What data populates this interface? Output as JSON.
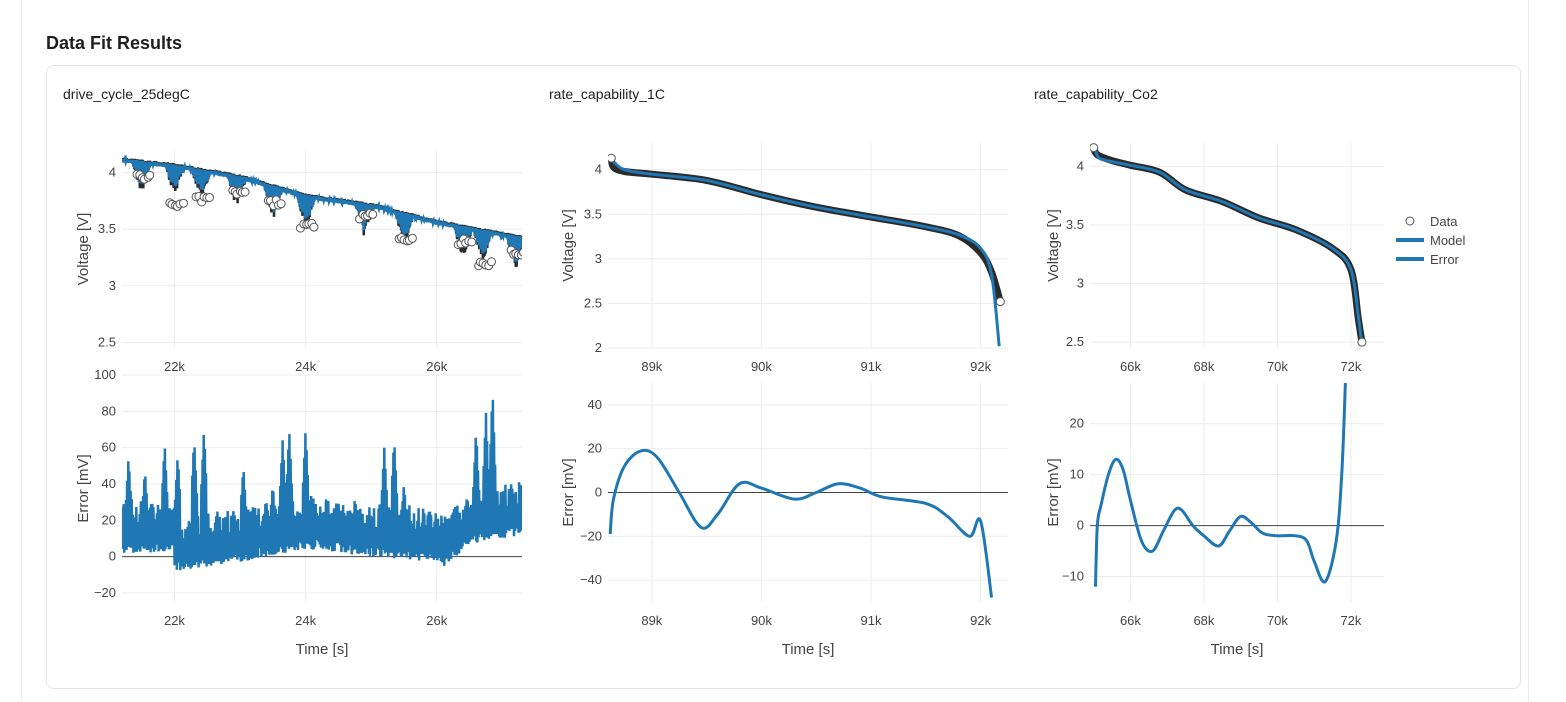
{
  "section": {
    "title": "Data Fit Results"
  },
  "colors": {
    "data": "#2b2b2b",
    "model": "#1f77b4",
    "error": "#1f77b4",
    "grid": "#ececec",
    "zero": "#444444"
  },
  "legend": {
    "items": [
      {
        "label": "Data",
        "symbol": "circle-open"
      },
      {
        "label": "Model",
        "symbol": "line"
      },
      {
        "label": "Error",
        "symbol": "line"
      }
    ]
  },
  "chart_data": [
    {
      "type": "line",
      "title": "drive_cycle_25degC",
      "xlabel": "Time [s]",
      "voltage": {
        "ylabel": "Voltage [V]",
        "xlim": [
          21200,
          27300
        ],
        "ylim": [
          2.45,
          4.2
        ],
        "xticks": [
          22000,
          24000,
          26000
        ],
        "xticklabels": [
          "22k",
          "24k",
          "26k"
        ],
        "yticks": [
          2.5,
          3,
          3.5,
          4
        ],
        "yticklabels": [
          "2.5",
          "3",
          "3.5",
          "4"
        ],
        "trend": [
          [
            21200,
            4.12
          ],
          [
            22000,
            4.07
          ],
          [
            23000,
            3.97
          ],
          [
            24000,
            3.8
          ],
          [
            25000,
            3.72
          ],
          [
            26000,
            3.57
          ],
          [
            27300,
            3.43
          ]
        ],
        "dips": [
          [
            21500,
            3.95
          ],
          [
            22000,
            3.7
          ],
          [
            22400,
            3.75
          ],
          [
            22950,
            3.82
          ],
          [
            23500,
            3.72
          ],
          [
            24000,
            3.52
          ],
          [
            24900,
            3.6
          ],
          [
            25500,
            3.4
          ],
          [
            26400,
            3.38
          ],
          [
            26700,
            3.18
          ],
          [
            27200,
            3.28
          ]
        ]
      },
      "error": {
        "ylabel": "Error [mV]",
        "xlim": [
          21200,
          27300
        ],
        "ylim": [
          -25,
          100
        ],
        "xticks": [
          22000,
          24000,
          26000
        ],
        "xticklabels": [
          "22k",
          "24k",
          "26k"
        ],
        "yticks": [
          -20,
          0,
          20,
          40,
          60,
          80,
          100
        ],
        "yticklabels": [
          "−20",
          "0",
          "20",
          "40",
          "60",
          "80",
          "100"
        ],
        "base": [
          [
            21200,
            10
          ],
          [
            22000,
            10
          ],
          [
            22000,
            0
          ],
          [
            23000,
            5
          ],
          [
            24000,
            12
          ],
          [
            25000,
            8
          ],
          [
            26000,
            5
          ],
          [
            26100,
            2
          ],
          [
            26500,
            14
          ],
          [
            27300,
            20
          ]
        ],
        "spikes": [
          [
            21200,
            30
          ],
          [
            21300,
            55
          ],
          [
            21550,
            48
          ],
          [
            21850,
            62
          ],
          [
            22050,
            56
          ],
          [
            22300,
            65
          ],
          [
            22450,
            70
          ],
          [
            23050,
            50
          ],
          [
            23500,
            40
          ],
          [
            23650,
            65
          ],
          [
            23750,
            70
          ],
          [
            24000,
            70
          ],
          [
            24500,
            30
          ],
          [
            25200,
            60
          ],
          [
            25350,
            65
          ],
          [
            25500,
            40
          ],
          [
            25900,
            25
          ],
          [
            26600,
            70
          ],
          [
            26750,
            80
          ],
          [
            26850,
            92
          ],
          [
            27300,
            38
          ]
        ]
      }
    },
    {
      "type": "line",
      "title": "rate_capability_1C",
      "xlabel": "Time [s]",
      "voltage": {
        "ylabel": "Voltage [V]",
        "xlim": [
          88600,
          92250
        ],
        "ylim": [
          2.0,
          4.3
        ],
        "xticks": [
          89000,
          90000,
          91000,
          92000
        ],
        "xticklabels": [
          "89k",
          "90k",
          "91k",
          "92k"
        ],
        "yticks": [
          2,
          2.5,
          3,
          3.5,
          4
        ],
        "yticklabels": [
          "2",
          "2.5",
          "3",
          "3.5",
          "4"
        ],
        "data": [
          [
            88630,
            4.13
          ],
          [
            88650,
            4.03
          ],
          [
            88750,
            3.98
          ],
          [
            89000,
            3.95
          ],
          [
            89500,
            3.88
          ],
          [
            90000,
            3.72
          ],
          [
            90500,
            3.58
          ],
          [
            91000,
            3.47
          ],
          [
            91500,
            3.36
          ],
          [
            91800,
            3.26
          ],
          [
            92000,
            3.07
          ],
          [
            92100,
            2.85
          ],
          [
            92180,
            2.52
          ]
        ],
        "model": [
          [
            88650,
            4.09
          ],
          [
            88750,
            4.0
          ],
          [
            89000,
            3.95
          ],
          [
            89500,
            3.88
          ],
          [
            90000,
            3.72
          ],
          [
            90500,
            3.58
          ],
          [
            91000,
            3.47
          ],
          [
            91500,
            3.36
          ],
          [
            91800,
            3.27
          ],
          [
            92000,
            3.12
          ],
          [
            92100,
            2.82
          ],
          [
            92170,
            2.02
          ]
        ]
      },
      "error": {
        "ylabel": "Error [mV]",
        "xlim": [
          88600,
          92250
        ],
        "ylim": [
          -50,
          50
        ],
        "xticks": [
          89000,
          90000,
          91000,
          92000
        ],
        "xticklabels": [
          "89k",
          "90k",
          "91k",
          "92k"
        ],
        "yticks": [
          -40,
          -20,
          0,
          20,
          40
        ],
        "yticklabels": [
          "−40",
          "−20",
          "0",
          "20",
          "40"
        ],
        "values": [
          [
            88620,
            -19
          ],
          [
            88650,
            -3
          ],
          [
            88750,
            12
          ],
          [
            88900,
            19
          ],
          [
            89050,
            16
          ],
          [
            89250,
            0
          ],
          [
            89450,
            -16
          ],
          [
            89600,
            -10
          ],
          [
            89800,
            4
          ],
          [
            90000,
            2
          ],
          [
            90300,
            -3
          ],
          [
            90500,
            0
          ],
          [
            90700,
            4
          ],
          [
            90900,
            2
          ],
          [
            91100,
            -2
          ],
          [
            91500,
            -5
          ],
          [
            91700,
            -11
          ],
          [
            91900,
            -20
          ],
          [
            92000,
            -13
          ],
          [
            92100,
            -48
          ]
        ]
      }
    },
    {
      "type": "line",
      "title": "rate_capability_Co2",
      "xlabel": "Time [s]",
      "voltage": {
        "ylabel": "Voltage [V]",
        "xlim": [
          64900,
          72900
        ],
        "ylim": [
          2.45,
          4.2
        ],
        "xticks": [
          66000,
          68000,
          70000,
          72000
        ],
        "xticklabels": [
          "66k",
          "68k",
          "70k",
          "72k"
        ],
        "yticks": [
          2.5,
          3,
          3.5,
          4
        ],
        "yticklabels": [
          "2.5",
          "3",
          "3.5",
          "4"
        ],
        "data": [
          [
            65000,
            4.16
          ],
          [
            65100,
            4.1
          ],
          [
            65500,
            4.05
          ],
          [
            66000,
            4.01
          ],
          [
            66800,
            3.95
          ],
          [
            67500,
            3.8
          ],
          [
            68500,
            3.7
          ],
          [
            69500,
            3.56
          ],
          [
            70500,
            3.46
          ],
          [
            71500,
            3.3
          ],
          [
            72000,
            3.12
          ],
          [
            72200,
            2.7
          ],
          [
            72300,
            2.5
          ]
        ],
        "model": [
          [
            65050,
            4.14
          ],
          [
            65150,
            4.07
          ],
          [
            65500,
            4.04
          ],
          [
            66000,
            4.01
          ],
          [
            66800,
            3.95
          ],
          [
            67500,
            3.8
          ],
          [
            68500,
            3.7
          ],
          [
            69500,
            3.56
          ],
          [
            70500,
            3.46
          ],
          [
            71500,
            3.3
          ],
          [
            72000,
            3.12
          ],
          [
            72200,
            2.72
          ],
          [
            72280,
            2.53
          ]
        ]
      },
      "error": {
        "ylabel": "Error [mV]",
        "xlim": [
          64900,
          72900
        ],
        "ylim": [
          -15,
          28
        ],
        "xticks": [
          66000,
          68000,
          70000,
          72000
        ],
        "xticklabels": [
          "66k",
          "68k",
          "70k",
          "72k"
        ],
        "yticks": [
          -10,
          0,
          10,
          20
        ],
        "yticklabels": [
          "−10",
          "0",
          "10",
          "20"
        ],
        "values": [
          [
            65050,
            -12
          ],
          [
            65100,
            0
          ],
          [
            65200,
            4
          ],
          [
            65400,
            10
          ],
          [
            65600,
            13
          ],
          [
            65800,
            11
          ],
          [
            66000,
            5
          ],
          [
            66300,
            -3
          ],
          [
            66600,
            -5
          ],
          [
            66900,
            -1
          ],
          [
            67200,
            3
          ],
          [
            67400,
            3
          ],
          [
            67700,
            0
          ],
          [
            68000,
            -2
          ],
          [
            68400,
            -4
          ],
          [
            68700,
            -1
          ],
          [
            69000,
            1.8
          ],
          [
            69300,
            0.5
          ],
          [
            69600,
            -1.5
          ],
          [
            70000,
            -2
          ],
          [
            70500,
            -2
          ],
          [
            70800,
            -3
          ],
          [
            71000,
            -7
          ],
          [
            71300,
            -11
          ],
          [
            71600,
            -3
          ],
          [
            71750,
            10
          ],
          [
            71850,
            28
          ]
        ]
      }
    }
  ]
}
